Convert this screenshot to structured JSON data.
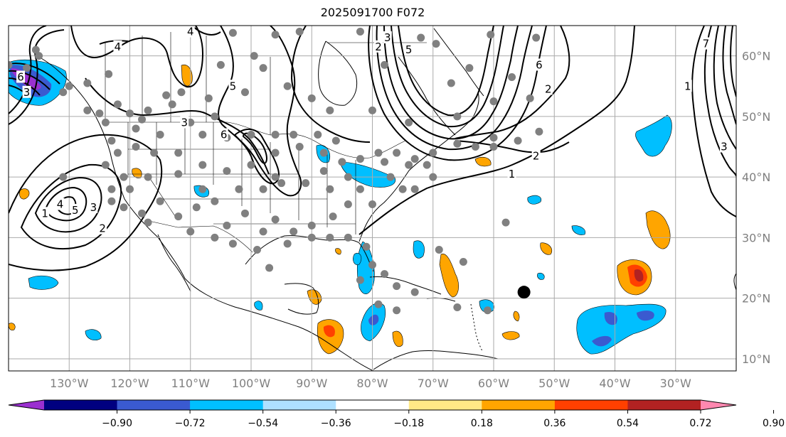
{
  "title": "2025091700 F072",
  "map": {
    "lon_range": [
      -140,
      -20
    ],
    "lat_range": [
      8,
      65
    ],
    "lon_ticks": [
      {
        "value": -130,
        "label": "130°W"
      },
      {
        "value": -120,
        "label": "120°W"
      },
      {
        "value": -110,
        "label": "110°W"
      },
      {
        "value": -100,
        "label": "100°W"
      },
      {
        "value": -90,
        "label": "90°W"
      },
      {
        "value": -80,
        "label": "80°W"
      },
      {
        "value": -70,
        "label": "70°W"
      },
      {
        "value": -60,
        "label": "60°W"
      },
      {
        "value": -50,
        "label": "50°W"
      },
      {
        "value": -40,
        "label": "40°W"
      },
      {
        "value": -30,
        "label": "30°W"
      }
    ],
    "lat_ticks": [
      {
        "value": 60,
        "label": "60°N"
      },
      {
        "value": 50,
        "label": "50°N"
      },
      {
        "value": 40,
        "label": "40°N"
      },
      {
        "value": 30,
        "label": "30°N"
      },
      {
        "value": 20,
        "label": "20°N"
      },
      {
        "value": 10,
        "label": "10°N"
      }
    ],
    "grid": true,
    "contour_labels": [
      {
        "text": "4",
        "lon": -131.5,
        "lat": 35.5
      },
      {
        "text": "5",
        "lon": -129,
        "lat": 34.5
      },
      {
        "text": "3",
        "lon": -126,
        "lat": 35
      },
      {
        "text": "2",
        "lon": -124.5,
        "lat": 31.5
      },
      {
        "text": "1",
        "lon": -134,
        "lat": 34
      },
      {
        "text": "4",
        "lon": -122,
        "lat": 61.5
      },
      {
        "text": "3",
        "lon": -111,
        "lat": 49
      },
      {
        "text": "5",
        "lon": -103,
        "lat": 55
      },
      {
        "text": "6",
        "lon": -104.5,
        "lat": 47
      },
      {
        "text": "4",
        "lon": -110,
        "lat": 64
      },
      {
        "text": "2",
        "lon": -79,
        "lat": 61.5
      },
      {
        "text": "3",
        "lon": -77.5,
        "lat": 63
      },
      {
        "text": "5",
        "lon": -74,
        "lat": 61
      },
      {
        "text": "6",
        "lon": -52.5,
        "lat": 58.5
      },
      {
        "text": "2",
        "lon": -51,
        "lat": 54.5
      },
      {
        "text": "2",
        "lon": -53,
        "lat": 43.5
      },
      {
        "text": "1",
        "lon": -57,
        "lat": 40.5
      },
      {
        "text": "1",
        "lon": -28,
        "lat": 55
      },
      {
        "text": "7",
        "lon": -25,
        "lat": 62
      },
      {
        "text": "3",
        "lon": -22,
        "lat": 45
      },
      {
        "text": "6",
        "lon": -138,
        "lat": 56.5
      },
      {
        "text": "3",
        "lon": -137,
        "lat": 54
      }
    ],
    "marker": {
      "name": "storm-center-marker",
      "lon": -55,
      "lat": 21,
      "color": "#000000"
    },
    "station_color": "#808080"
  },
  "colorbar": {
    "ticks": [
      "−0.90",
      "−0.72",
      "−0.54",
      "−0.36",
      "−0.18",
      "0.18",
      "0.36",
      "0.54",
      "0.72",
      "0.90"
    ],
    "colors": [
      "#9b30d0",
      "#000080",
      "#3a5ad0",
      "#00bfff",
      "#aee0ff",
      "#ffffff",
      "#ffe886",
      "#ffa500",
      "#ff4000",
      "#b22222",
      "#ff88b0"
    ],
    "extend": "both"
  }
}
